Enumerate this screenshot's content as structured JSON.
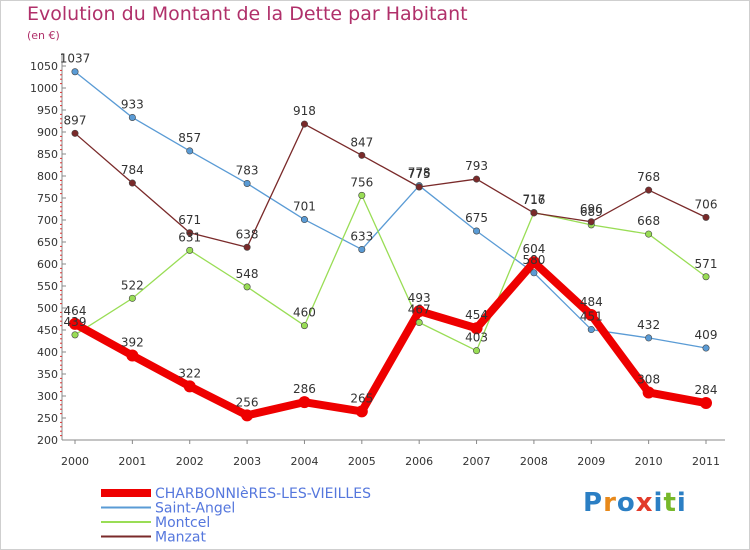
{
  "title": "Evolution du Montant de la Dette par Habitant",
  "subtitle": "(en €)",
  "logo": {
    "text": "Proxiti",
    "letters": [
      "P",
      "r",
      "o",
      "x",
      "i",
      "t",
      "i"
    ],
    "colors": [
      "#2b7fc4",
      "#e8891a",
      "#2b7fc4",
      "#e23b2a",
      "#2b7fc4",
      "#77b82a",
      "#2b7fc4"
    ]
  },
  "chart_data": {
    "type": "line",
    "categories": [
      "2000",
      "2001",
      "2002",
      "2003",
      "2004",
      "2005",
      "2006",
      "2007",
      "2008",
      "2009",
      "2010",
      "2011"
    ],
    "ylim": [
      200,
      1050
    ],
    "yticks": [
      200,
      250,
      300,
      350,
      400,
      450,
      500,
      550,
      600,
      650,
      700,
      750,
      800,
      850,
      900,
      950,
      1000,
      1050
    ],
    "grid": false,
    "legend": "bottom-left",
    "series": [
      {
        "name": "CHARBONNIèRES-LES-VIEILLES",
        "color": "#ee0000",
        "width": 8,
        "values": [
          464,
          392,
          322,
          256,
          286,
          265,
          493,
          454,
          604,
          484,
          308,
          284
        ]
      },
      {
        "name": "Saint-Angel",
        "color": "#5a9bd5",
        "width": 1.3,
        "values": [
          1037,
          933,
          857,
          783,
          701,
          633,
          778,
          675,
          580,
          451,
          432,
          409
        ]
      },
      {
        "name": "Montcel",
        "color": "#99dd55",
        "width": 1.3,
        "values": [
          439,
          522,
          631,
          548,
          460,
          756,
          467,
          403,
          717,
          689,
          668,
          571
        ]
      },
      {
        "name": "Manzat",
        "color": "#7a2a2a",
        "width": 1.3,
        "values": [
          897,
          784,
          671,
          638,
          918,
          847,
          775,
          793,
          716,
          696,
          768,
          706
        ]
      }
    ]
  }
}
